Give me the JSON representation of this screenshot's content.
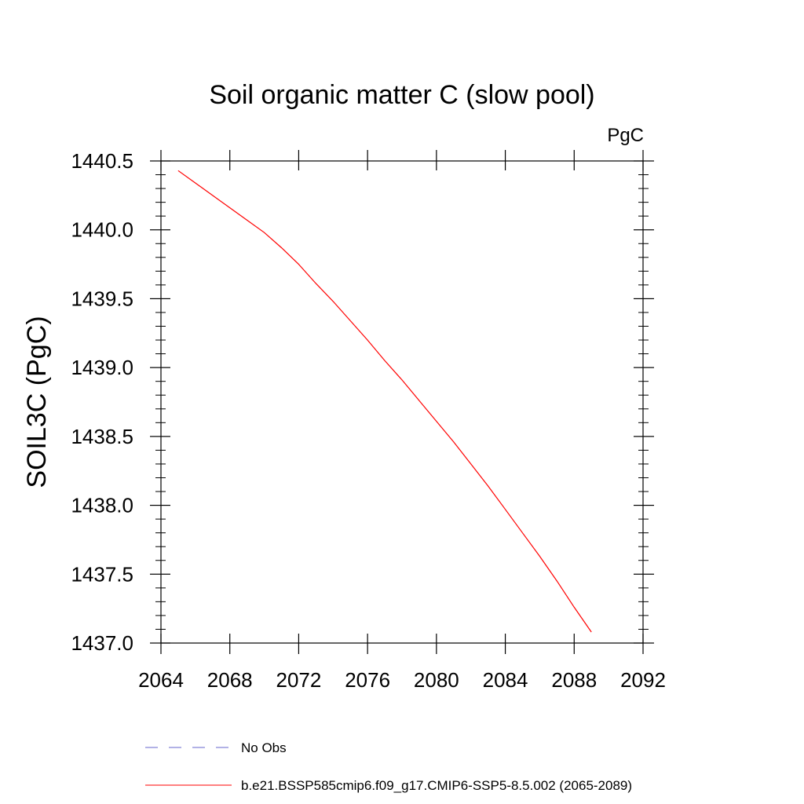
{
  "chart_data": {
    "type": "line",
    "title": "Soil organic matter C (slow pool)",
    "units_label": "PgC",
    "xlabel": "",
    "ylabel": "SOIL3C  (PgC)",
    "xlim": [
      2064,
      2092
    ],
    "ylim": [
      1437.0,
      1440.5
    ],
    "x_ticks": [
      2064,
      2068,
      2072,
      2076,
      2080,
      2084,
      2088,
      2092
    ],
    "x_tick_labels": [
      "2064",
      "2068",
      "2072",
      "2076",
      "2080",
      "2084",
      "2088",
      "2092"
    ],
    "y_ticks": [
      1437.0,
      1437.5,
      1438.0,
      1438.5,
      1439.0,
      1439.5,
      1440.0,
      1440.5
    ],
    "y_tick_labels": [
      "1437.0",
      "1437.5",
      "1438.0",
      "1438.5",
      "1439.0",
      "1439.5",
      "1440.0",
      "1440.5"
    ],
    "grid": false,
    "legend_position": "bottom",
    "series": [
      {
        "name": "b.e21.BSSP585cmip6.f09_g17.CMIP6-SSP5-8.5.002 (2065-2089)",
        "color": "#ff0000",
        "dash": "solid",
        "x": [
          2065,
          2066,
          2067,
          2068,
          2069,
          2070,
          2071,
          2072,
          2073,
          2074,
          2075,
          2076,
          2077,
          2078,
          2079,
          2080,
          2081,
          2082,
          2083,
          2084,
          2085,
          2086,
          2087,
          2088,
          2089
        ],
        "y": [
          1440.43,
          1440.34,
          1440.25,
          1440.16,
          1440.07,
          1439.98,
          1439.87,
          1439.75,
          1439.61,
          1439.48,
          1439.34,
          1439.2,
          1439.05,
          1438.91,
          1438.76,
          1438.61,
          1438.46,
          1438.3,
          1438.14,
          1437.97,
          1437.8,
          1437.63,
          1437.45,
          1437.26,
          1437.08
        ]
      }
    ],
    "legend": [
      {
        "label": "No Obs",
        "color": "#6666cc",
        "dash": "dashed"
      },
      {
        "label": "b.e21.BSSP585cmip6.f09_g17.CMIP6-SSP5-8.5.002 (2065-2089)",
        "color": "#ff0000",
        "dash": "solid"
      }
    ]
  }
}
